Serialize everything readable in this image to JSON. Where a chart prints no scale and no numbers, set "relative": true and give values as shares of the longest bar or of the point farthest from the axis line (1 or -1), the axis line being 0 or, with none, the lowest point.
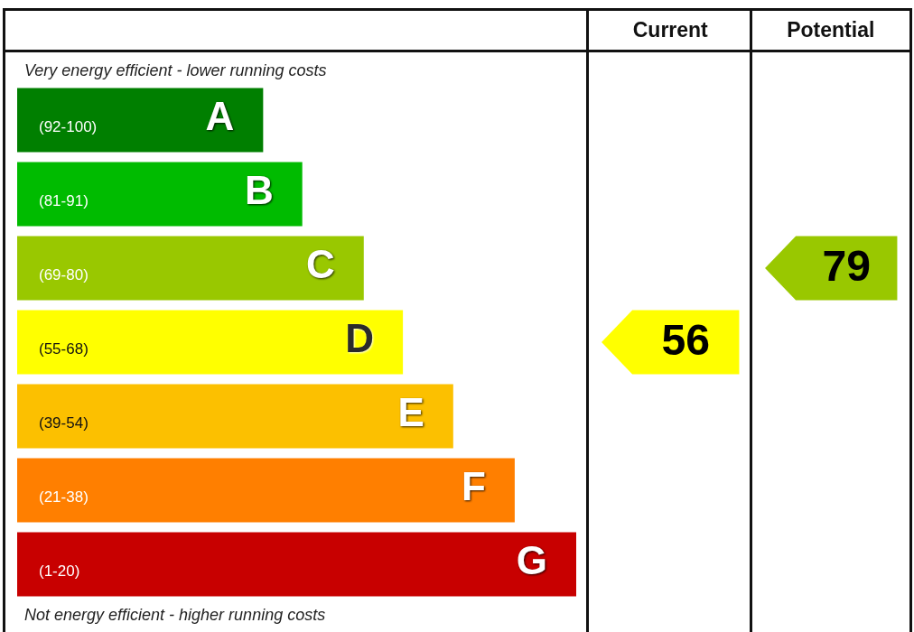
{
  "chart_data": [
    {
      "type": "bar",
      "orientation": "horizontal",
      "relative": true,
      "categories": [
        "(92-100)",
        "(81-91)",
        "(69-80)",
        "(55-68)",
        "(39-54)",
        "(21-38)",
        "(1-20)"
      ],
      "values": [
        0.44,
        0.51,
        0.62,
        0.69,
        0.78,
        0.89,
        1
      ],
      "colors": [
        "#007f00",
        "#00bb00",
        "#99c800",
        "#ffff00",
        "#fcc000",
        "#ff7f00",
        "#c80000"
      ],
      "annotations": [
        "Very energy efficient - lower running costs",
        {
          "text": "A",
          "x": 0.44,
          "y": "(92-100)"
        },
        {
          "text": "B",
          "x": 0.51,
          "y": "(81-91)"
        },
        {
          "text": "C",
          "x": 0.62,
          "y": "(69-80)"
        },
        {
          "text": "D",
          "x": 0.69,
          "y": "(55-68)"
        },
        {
          "text": "E",
          "x": 0.78,
          "y": "(39-54)"
        },
        {
          "text": "F",
          "x": 0.89,
          "y": "(21-38)"
        },
        {
          "text": "G",
          "x": 1,
          "y": "(1-20)"
        },
        "Not energy efficient - higher running costs"
      ]
    },
    {
      "type": "other",
      "title": "Current",
      "categories": [
        null,
        null,
        null,
        null,
        null,
        null,
        null
      ],
      "values": [
        null,
        null,
        null,
        56,
        null,
        null,
        null
      ],
      "colors": [
        null,
        null,
        null,
        "#ffff00",
        null,
        null,
        null
      ],
      "data_labels": true
    },
    {
      "type": "other",
      "title": "Potential",
      "categories": [
        null,
        null,
        null,
        null,
        null,
        null,
        null
      ],
      "values": [
        null,
        null,
        79,
        null,
        null,
        null,
        null
      ],
      "colors": [
        null,
        null,
        "#99c800",
        null,
        null,
        null,
        null
      ],
      "data_labels": true
    }
  ]
}
